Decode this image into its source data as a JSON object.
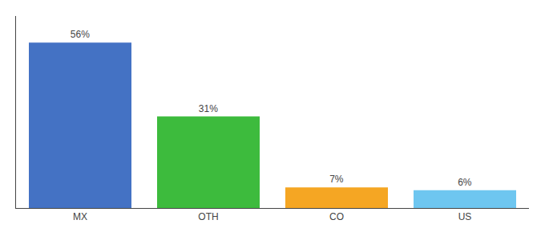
{
  "chart_data": {
    "type": "bar",
    "categories": [
      "MX",
      "OTH",
      "CO",
      "US"
    ],
    "values": [
      56,
      31,
      7,
      6
    ],
    "value_labels": [
      "56%",
      "31%",
      "7%",
      "6%"
    ],
    "colors": [
      "#4472c4",
      "#3dbb3d",
      "#f5a623",
      "#6ec6f0"
    ],
    "ylim": [
      0,
      65
    ],
    "data_labels": true,
    "tick_labels": "x",
    "grid": false
  }
}
